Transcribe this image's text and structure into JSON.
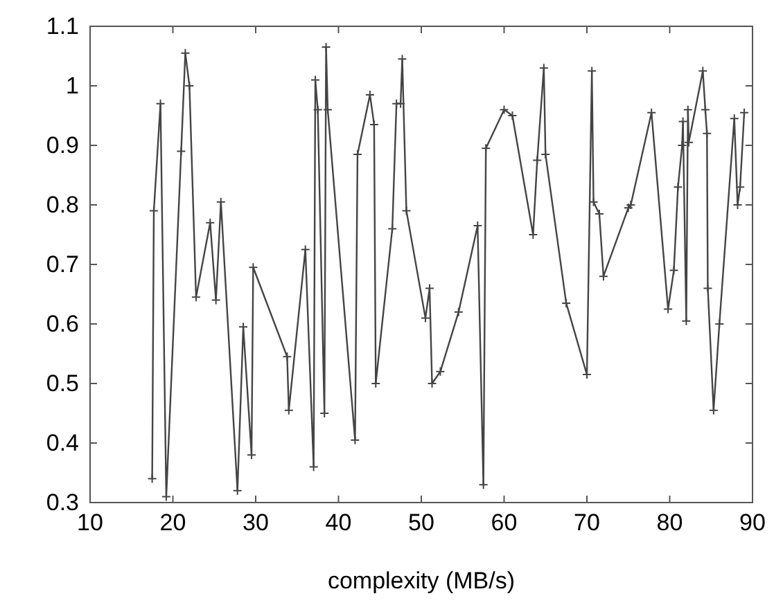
{
  "chart_data": {
    "type": "line",
    "xlabel": "complexity (MB/s)",
    "xlim": [
      10,
      90
    ],
    "xticks": [
      10,
      20,
      30,
      40,
      50,
      60,
      70,
      80,
      90
    ],
    "ylim": [
      0.3,
      1.1
    ],
    "yticks": [
      0.3,
      0.4,
      0.5,
      0.6,
      0.7,
      0.8,
      0.9,
      1,
      1.1
    ],
    "grid": false,
    "marker": "cross",
    "line_style": "solid",
    "series": [
      {
        "color": "#444444",
        "x": [
          17.5,
          17.7,
          18.5,
          19.2,
          21,
          21.5,
          22,
          22.8,
          24.5,
          25.2,
          25.8,
          27.8,
          28.5,
          29.5,
          29.7,
          33.8,
          34,
          36,
          37,
          37.2,
          37.5,
          38.3,
          38.5,
          38.7,
          42,
          42.3,
          43.8,
          44.3,
          44.5,
          46.5,
          47,
          47.5,
          47.7,
          48.2,
          50.5,
          51,
          51.3,
          52.3,
          54.5,
          56.8,
          57.5,
          57.8,
          60,
          61,
          63.5,
          64,
          64.8,
          65,
          67.5,
          70,
          70.6,
          70.8,
          71.5,
          72,
          75,
          75.3,
          77.8,
          79.8,
          80.5,
          81,
          81.5,
          81.6,
          82,
          82.2,
          82.3,
          84,
          84.3,
          84.5,
          84.6,
          85.3,
          86,
          87.8,
          88.2,
          88.5,
          89
        ],
        "values": [
          0.34,
          0.79,
          0.97,
          0.31,
          0.89,
          1.055,
          1.0,
          0.645,
          0.77,
          0.64,
          0.805,
          0.32,
          0.595,
          0.38,
          0.695,
          0.545,
          0.455,
          0.725,
          0.36,
          1.01,
          0.96,
          0.45,
          1.065,
          0.96,
          0.405,
          0.885,
          0.985,
          0.935,
          0.5,
          0.76,
          0.97,
          0.97,
          1.045,
          0.79,
          0.61,
          0.66,
          0.5,
          0.52,
          0.62,
          0.765,
          0.33,
          0.895,
          0.96,
          0.95,
          0.75,
          0.875,
          1.03,
          0.885,
          0.635,
          0.515,
          1.025,
          0.805,
          0.785,
          0.68,
          0.795,
          0.8,
          0.955,
          0.625,
          0.69,
          0.83,
          0.9,
          0.94,
          0.605,
          0.96,
          0.905,
          1.025,
          0.96,
          0.92,
          0.66,
          0.455,
          0.6,
          0.945,
          0.8,
          0.83,
          0.955
        ]
      }
    ]
  }
}
